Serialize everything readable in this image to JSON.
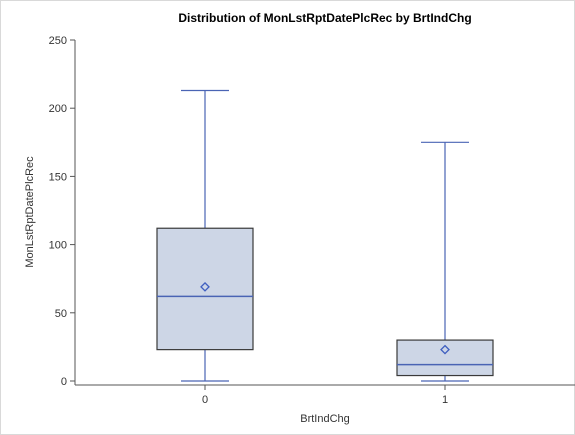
{
  "colors": {
    "box_fill": "#cdd6e6",
    "box_outline": "#3a3a3a",
    "whisker": "#4a64b4",
    "median": "#4a64b4",
    "mean_marker": "#3f5fc0",
    "axis": "#555555"
  },
  "chart_data": {
    "type": "boxplot",
    "title": "Distribution of MonLstRptDatePlcRec by BrtIndChg",
    "xlabel": "BrtIndChg",
    "ylabel": "MonLstRptDatePlcRec",
    "ylim": [
      0,
      250
    ],
    "y_ticks": [
      0,
      50,
      100,
      150,
      200,
      250
    ],
    "categories": [
      "0",
      "1"
    ],
    "boxes": [
      {
        "category": "0",
        "min": 0,
        "q1": 23,
        "median": 62,
        "q3": 112,
        "max": 213,
        "mean": 69
      },
      {
        "category": "1",
        "min": 0,
        "q1": 4,
        "median": 12,
        "q3": 30,
        "max": 175,
        "mean": 23
      }
    ],
    "grid": false,
    "legend": "none"
  }
}
